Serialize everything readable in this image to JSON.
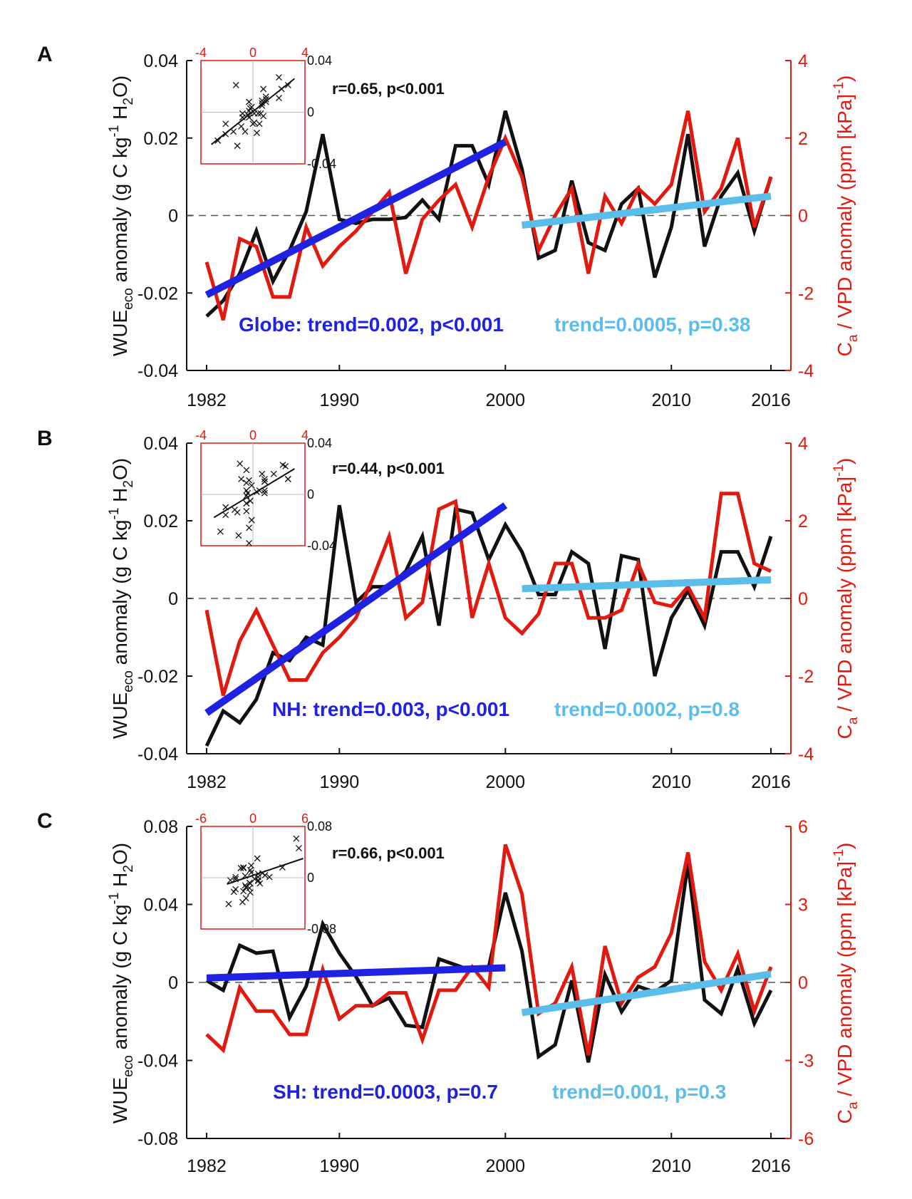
{
  "colors": {
    "wue": "#111111",
    "ratio": "#e1190f",
    "trend_early": "#1f22e0",
    "trend_late": "#5bbdea",
    "zero_line": "#555555",
    "inset_frame": "#e1190f"
  },
  "axis_text": {
    "ylabel_left_base": "WUE",
    "ylabel_left_sub": "eco",
    "ylabel_left_rest": " anomaly (g C kg",
    "ylabel_left_sup": "-1",
    "ylabel_left_h2": " H",
    "ylabel_left_h2sub": "2",
    "ylabel_left_end": "O)",
    "ylabel_right_base": "C",
    "ylabel_right_sub": "a",
    "ylabel_right_rest": " / VPD anomaly (ppm  [kPa]",
    "ylabel_right_sup": "-1",
    "ylabel_right_end": ")"
  },
  "chart_data": [
    {
      "panel": "A",
      "type": "line",
      "x": [
        1982,
        1983,
        1984,
        1985,
        1986,
        1987,
        1988,
        1989,
        1990,
        1991,
        1992,
        1993,
        1994,
        1995,
        1996,
        1997,
        1998,
        1999,
        2000,
        2001,
        2002,
        2003,
        2004,
        2005,
        2006,
        2007,
        2008,
        2009,
        2010,
        2011,
        2012,
        2013,
        2014,
        2015,
        2016
      ],
      "x_ticks": [
        "1982",
        "1990",
        "2000",
        "2010",
        "2016"
      ],
      "ylim_left": [
        -0.04,
        0.04
      ],
      "yticks_left": [
        "-0.04",
        "-0.02",
        "0",
        "0.02",
        "0.04"
      ],
      "ylim_right": [
        -4,
        4
      ],
      "yticks_right": [
        "-4",
        "-2",
        "0",
        "2",
        "4"
      ],
      "series": [
        {
          "name": "WUEeco anomaly",
          "axis": "left",
          "values": [
            -0.026,
            -0.022,
            -0.015,
            -0.004,
            -0.017,
            -0.009,
            0.001,
            0.021,
            -0.001,
            -0.002,
            -0.001,
            -0.001,
            -0.0005,
            0.004,
            -0.001,
            0.018,
            0.018,
            0.008,
            0.027,
            0.012,
            -0.011,
            -0.009,
            0.009,
            -0.007,
            -0.009,
            0.003,
            0.007,
            -0.016,
            -0.003,
            0.021,
            -0.008,
            0.005,
            0.011,
            -0.004,
            0.01
          ]
        },
        {
          "name": "Ca/VPD anomaly",
          "axis": "right",
          "values": [
            -1.2,
            -2.7,
            -0.6,
            -0.8,
            -2.1,
            -2.1,
            -0.3,
            -1.3,
            -0.8,
            -0.4,
            0.1,
            0.6,
            -1.5,
            -0.1,
            0.4,
            0.8,
            -0.3,
            1.0,
            2.0,
            1.0,
            -0.9,
            0.0,
            0.7,
            -1.5,
            0.5,
            -0.2,
            0.7,
            0.3,
            0.8,
            2.7,
            0.1,
            0.7,
            2.0,
            -0.3,
            1.0
          ]
        }
      ],
      "trends": [
        {
          "x": [
            1982,
            2000
          ],
          "y": [
            -0.0205,
            0.019
          ],
          "text": "Globe: trend=0.002, p<0.001"
        },
        {
          "x": [
            2001,
            2016
          ],
          "y": [
            -0.0025,
            0.005
          ],
          "text": "trend=0.0005, p=0.38"
        }
      ],
      "inset": {
        "correlation_text": "r=0.65, p<0.001",
        "x_ticks": [
          "-4",
          "0",
          "4"
        ],
        "xlim": [
          -4,
          4
        ],
        "y_ticks": [
          "0.04",
          "0",
          "-0.04"
        ],
        "ylim": [
          -0.04,
          0.04
        ],
        "fit": {
          "x": [
            -3.2,
            3.2
          ],
          "y": [
            -0.025,
            0.026
          ]
        },
        "points": [
          [
            -2.7,
            -0.022
          ],
          [
            -2.1,
            -0.017
          ],
          [
            -2.1,
            -0.009
          ],
          [
            -1.5,
            -0.015
          ],
          [
            -1.3,
            0.021
          ],
          [
            -1.2,
            -0.026
          ],
          [
            -0.9,
            -0.011
          ],
          [
            -0.8,
            -0.004
          ],
          [
            -0.8,
            -0.001
          ],
          [
            -0.6,
            -0.015
          ],
          [
            -0.4,
            -0.002
          ],
          [
            -0.3,
            0.001
          ],
          [
            -0.3,
            0.008
          ],
          [
            -0.3,
            -0.004
          ],
          [
            -0.2,
            0.003
          ],
          [
            -0.1,
            0.004
          ],
          [
            0.0,
            -0.009
          ],
          [
            0.1,
            -0.001
          ],
          [
            0.1,
            -0.008
          ],
          [
            0.3,
            -0.016
          ],
          [
            0.4,
            -0.001
          ],
          [
            0.5,
            -0.009
          ],
          [
            0.6,
            -0.001
          ],
          [
            0.7,
            0.009
          ],
          [
            0.7,
            0.007
          ],
          [
            0.7,
            0.005
          ],
          [
            0.8,
            0.018
          ],
          [
            0.8,
            -0.003
          ],
          [
            1.0,
            0.008
          ],
          [
            1.0,
            0.012
          ],
          [
            1.0,
            0.01
          ],
          [
            2.0,
            0.027
          ],
          [
            2.0,
            0.011
          ],
          [
            2.7,
            0.021
          ],
          [
            2.2,
            0.018
          ]
        ]
      }
    },
    {
      "panel": "B",
      "type": "line",
      "x": [
        1982,
        1983,
        1984,
        1985,
        1986,
        1987,
        1988,
        1989,
        1990,
        1991,
        1992,
        1993,
        1994,
        1995,
        1996,
        1997,
        1998,
        1999,
        2000,
        2001,
        2002,
        2003,
        2004,
        2005,
        2006,
        2007,
        2008,
        2009,
        2010,
        2011,
        2012,
        2013,
        2014,
        2015,
        2016
      ],
      "x_ticks": [
        "1982",
        "1990",
        "2000",
        "2010",
        "2016"
      ],
      "ylim_left": [
        -0.04,
        0.04
      ],
      "yticks_left": [
        "-0.04",
        "-0.02",
        "0",
        "0.02",
        "0.04"
      ],
      "ylim_right": [
        -4,
        4
      ],
      "yticks_right": [
        "-4",
        "-2",
        "0",
        "2",
        "4"
      ],
      "series": [
        {
          "name": "WUEeco anomaly",
          "axis": "left",
          "values": [
            -0.038,
            -0.029,
            -0.032,
            -0.026,
            -0.014,
            -0.016,
            -0.01,
            -0.012,
            0.024,
            -0.001,
            0.003,
            0.003,
            0.007,
            0.016,
            -0.007,
            0.023,
            0.022,
            0.01,
            0.019,
            0.012,
            0.001,
            0.001,
            0.012,
            0.009,
            -0.013,
            0.011,
            0.01,
            -0.02,
            -0.005,
            0.002,
            -0.007,
            0.012,
            0.012,
            0.003,
            0.016
          ]
        },
        {
          "name": "Ca/VPD anomaly",
          "axis": "right",
          "values": [
            -0.3,
            -2.5,
            -1.1,
            -0.3,
            -1.2,
            -2.1,
            -2.1,
            -1.4,
            -1.0,
            -0.5,
            0.5,
            1.6,
            -0.5,
            -0.1,
            2.3,
            2.5,
            -0.5,
            0.9,
            -0.5,
            -0.9,
            -0.4,
            0.9,
            0.9,
            -0.5,
            -0.5,
            -0.3,
            0.9,
            -0.1,
            -0.2,
            0.3,
            -0.5,
            2.7,
            2.7,
            0.9,
            0.7
          ]
        }
      ],
      "trends": [
        {
          "x": [
            1982,
            2000
          ],
          "y": [
            -0.0295,
            0.024
          ],
          "text": "NH: trend=0.003, p<0.001"
        },
        {
          "x": [
            2001,
            2016
          ],
          "y": [
            0.0025,
            0.0048
          ],
          "text": "trend=0.0002, p=0.8"
        }
      ],
      "inset": {
        "correlation_text": "r=0.44, p<0.001",
        "x_ticks": [
          "-4",
          "0",
          "4"
        ],
        "xlim": [
          -4,
          4
        ],
        "y_ticks": [
          "0.04",
          "0",
          "-0.04"
        ],
        "ylim": [
          -0.04,
          0.04
        ],
        "fit": {
          "x": [
            -3.0,
            3.2
          ],
          "y": [
            -0.018,
            0.02
          ]
        },
        "points": [
          [
            -2.5,
            -0.029
          ],
          [
            -2.1,
            -0.016
          ],
          [
            -2.1,
            -0.01
          ],
          [
            -1.4,
            -0.012
          ],
          [
            -1.2,
            -0.014
          ],
          [
            -1.1,
            -0.032
          ],
          [
            -1.0,
            0.024
          ],
          [
            -0.9,
            0.012
          ],
          [
            -0.5,
            0.003
          ],
          [
            -0.5,
            -0.007
          ],
          [
            -0.5,
            0.019
          ],
          [
            -0.5,
            0.009
          ],
          [
            -0.5,
            -0.013
          ],
          [
            -0.5,
            -0.001
          ],
          [
            -0.4,
            0.001
          ],
          [
            -0.3,
            -0.038
          ],
          [
            -0.3,
            0.011
          ],
          [
            -0.3,
            -0.026
          ],
          [
            -0.2,
            -0.005
          ],
          [
            -0.1,
            0.007
          ],
          [
            -0.1,
            -0.02
          ],
          [
            0.3,
            0.002
          ],
          [
            0.5,
            0.003
          ],
          [
            0.7,
            0.016
          ],
          [
            0.9,
            0.01
          ],
          [
            0.9,
            0.001
          ],
          [
            0.9,
            0.012
          ],
          [
            0.9,
            0.01
          ],
          [
            0.9,
            0.003
          ],
          [
            1.6,
            0.016
          ],
          [
            2.3,
            0.023
          ],
          [
            2.5,
            0.022
          ],
          [
            2.7,
            0.012
          ],
          [
            2.7,
            0.012
          ],
          [
            -0.5,
            -0.007
          ]
        ]
      }
    },
    {
      "panel": "C",
      "type": "line",
      "x": [
        1982,
        1983,
        1984,
        1985,
        1986,
        1987,
        1988,
        1989,
        1990,
        1991,
        1992,
        1993,
        1994,
        1995,
        1996,
        1997,
        1998,
        1999,
        2000,
        2001,
        2002,
        2003,
        2004,
        2005,
        2006,
        2007,
        2008,
        2009,
        2010,
        2011,
        2012,
        2013,
        2014,
        2015,
        2016
      ],
      "x_ticks": [
        "1982",
        "1990",
        "2000",
        "2010",
        "2016"
      ],
      "ylim_left": [
        -0.08,
        0.08
      ],
      "yticks_left": [
        "-0.08",
        "-0.04",
        "0",
        "0.04",
        "0.08"
      ],
      "ylim_right": [
        -6,
        6
      ],
      "yticks_right": [
        "-6",
        "-3",
        "0",
        "3",
        "6"
      ],
      "series": [
        {
          "name": "WUEeco anomaly",
          "axis": "left",
          "values": [
            0.001,
            -0.004,
            0.019,
            0.015,
            0.016,
            -0.018,
            -0.002,
            0.03,
            0.015,
            0.003,
            -0.012,
            -0.008,
            -0.022,
            -0.023,
            0.012,
            0.009,
            0.006,
            0.008,
            0.046,
            0.016,
            -0.038,
            -0.032,
            0.001,
            -0.041,
            0.004,
            -0.015,
            -0.002,
            -0.005,
            0.001,
            0.061,
            -0.009,
            -0.016,
            0.007,
            -0.021,
            -0.004
          ]
        },
        {
          "name": "Ca/VPD anomaly",
          "axis": "right",
          "values": [
            -2.0,
            -2.6,
            -0.2,
            -1.1,
            -1.1,
            -2.0,
            -2.0,
            0.5,
            -1.4,
            -0.9,
            -0.9,
            -0.4,
            -0.4,
            -2.2,
            -0.3,
            -0.3,
            0.6,
            -0.2,
            5.3,
            3.4,
            -1.2,
            -0.8,
            0.6,
            -2.8,
            1.4,
            -0.8,
            0.2,
            0.6,
            1.9,
            5.0,
            0.8,
            -0.3,
            1.1,
            -1.1,
            0.6
          ]
        }
      ],
      "trends": [
        {
          "x": [
            1982,
            2000
          ],
          "y": [
            0.0023,
            0.0075
          ],
          "text": "SH: trend=0.0003, p=0.7"
        },
        {
          "x": [
            2001,
            2016
          ],
          "y": [
            -0.0155,
            0.0043
          ],
          "text": "trend=0.001, p=0.3"
        }
      ],
      "inset": {
        "correlation_text": "r=0.66, p<0.001",
        "x_ticks": [
          "-6",
          "0",
          "6"
        ],
        "xlim": [
          -6,
          6
        ],
        "y_ticks": [
          "0.08",
          "0",
          "-0.08"
        ],
        "ylim": [
          -0.08,
          0.08
        ],
        "fit": {
          "x": [
            -3.0,
            5.8
          ],
          "y": [
            -0.01,
            0.03
          ]
        },
        "points": [
          [
            -2.8,
            -0.041
          ],
          [
            -2.6,
            -0.004
          ],
          [
            -2.2,
            -0.022
          ],
          [
            -2.0,
            0.001
          ],
          [
            -2.0,
            -0.018
          ],
          [
            -2.0,
            -0.002
          ],
          [
            -1.4,
            0.015
          ],
          [
            -1.2,
            -0.038
          ],
          [
            -1.1,
            0.016
          ],
          [
            -1.1,
            0.015
          ],
          [
            -1.1,
            -0.021
          ],
          [
            -0.9,
            0.003
          ],
          [
            -0.9,
            -0.012
          ],
          [
            -0.8,
            -0.032
          ],
          [
            -0.8,
            -0.015
          ],
          [
            -0.4,
            -0.008
          ],
          [
            -0.4,
            -0.016
          ],
          [
            -0.3,
            -0.023
          ],
          [
            -0.3,
            0.012
          ],
          [
            -0.3,
            -0.009
          ],
          [
            -0.2,
            0.019
          ],
          [
            -0.2,
            0.008
          ],
          [
            0.2,
            -0.002
          ],
          [
            0.5,
            0.03
          ],
          [
            0.6,
            0.006
          ],
          [
            0.6,
            0.001
          ],
          [
            0.6,
            -0.005
          ],
          [
            0.6,
            -0.004
          ],
          [
            0.8,
            -0.009
          ],
          [
            1.1,
            0.007
          ],
          [
            1.4,
            0.004
          ],
          [
            1.9,
            0.001
          ],
          [
            3.4,
            0.016
          ],
          [
            5.0,
            0.061
          ],
          [
            5.3,
            0.046
          ]
        ]
      }
    }
  ]
}
